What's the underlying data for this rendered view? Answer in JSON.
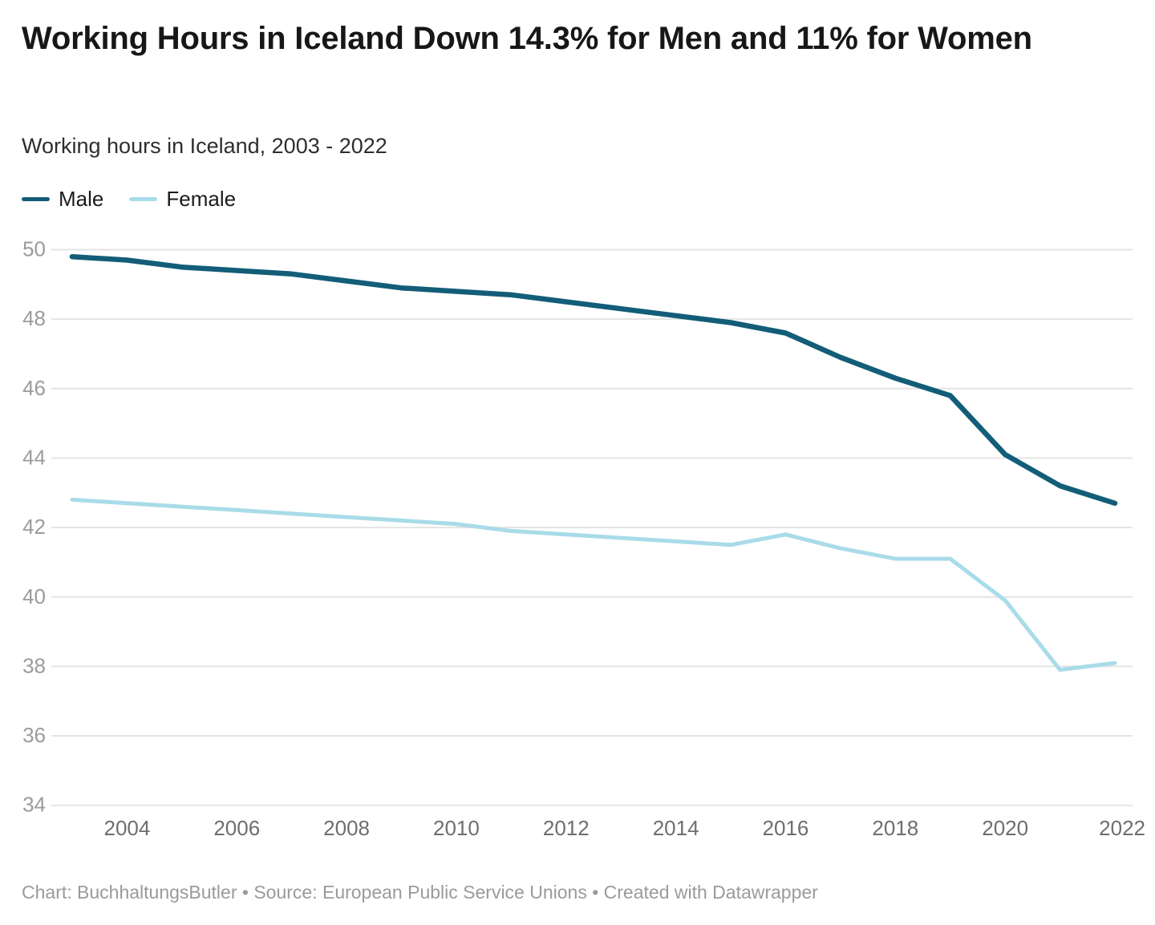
{
  "header": {
    "title": "Working Hours in Iceland Down 14.3% for Men and 11% for Women",
    "subtitle": "Working hours in Iceland, 2003 - 2022"
  },
  "legend": [
    {
      "label": "Male",
      "color": "#135d78"
    },
    {
      "label": "Female",
      "color": "#a9dbe9"
    }
  ],
  "chart_data": {
    "type": "line",
    "title": "Working Hours in Iceland Down 14.3% for Men and 11% for Women",
    "subtitle": "Working hours in Iceland, 2003 - 2022",
    "xlabel": "",
    "ylabel": "",
    "x": [
      2003,
      2004,
      2005,
      2006,
      2007,
      2008,
      2009,
      2010,
      2011,
      2012,
      2013,
      2014,
      2015,
      2016,
      2017,
      2018,
      2019,
      2020,
      2021,
      2022
    ],
    "series": [
      {
        "name": "Male",
        "color": "#135d78",
        "values": [
          49.8,
          49.7,
          49.5,
          49.4,
          49.3,
          49.1,
          48.9,
          48.8,
          48.7,
          48.5,
          48.3,
          48.1,
          47.9,
          47.6,
          46.9,
          46.3,
          45.8,
          44.1,
          43.2,
          42.7
        ]
      },
      {
        "name": "Female",
        "color": "#a9dbe9",
        "values": [
          42.8,
          42.7,
          42.6,
          42.5,
          42.4,
          42.3,
          42.2,
          42.1,
          41.9,
          41.8,
          41.7,
          41.6,
          41.5,
          41.8,
          41.4,
          41.1,
          41.1,
          39.9,
          37.9,
          38.1
        ]
      }
    ],
    "ylim": [
      34,
      50
    ],
    "yticks": [
      50,
      48,
      46,
      44,
      42,
      40,
      38,
      36,
      34
    ],
    "xticks": [
      2004,
      2006,
      2008,
      2010,
      2012,
      2014,
      2016,
      2018,
      2020,
      2022
    ],
    "grid": "horizontal",
    "legend_position": "top-left"
  },
  "footer": {
    "text": "Chart: BuchhaltungsButler • Source: European Public Service Unions • Created with Datawrapper"
  }
}
